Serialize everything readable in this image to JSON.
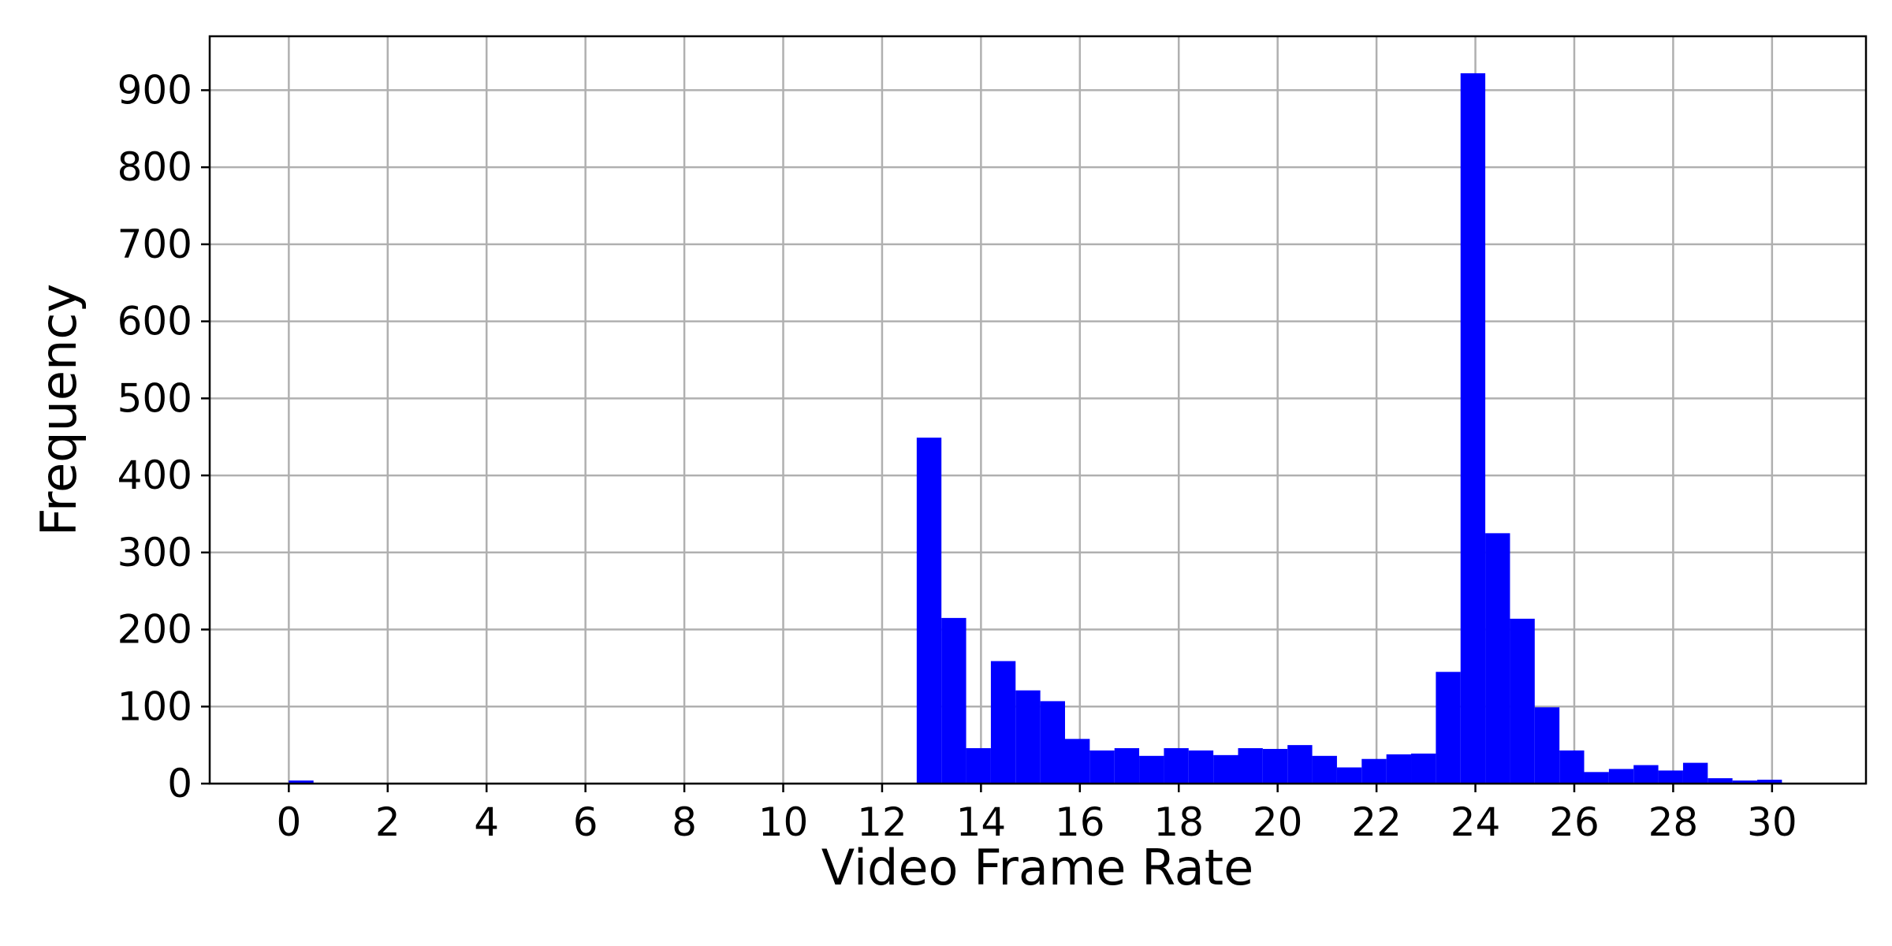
{
  "chart_data": {
    "type": "bar",
    "title": "",
    "xlabel": "Video Frame Rate",
    "ylabel": "Frequency",
    "xlim": [
      -1.6,
      31.9
    ],
    "ylim": [
      0,
      970
    ],
    "xticks": [
      0,
      2,
      4,
      6,
      8,
      10,
      12,
      14,
      16,
      18,
      20,
      22,
      24,
      26,
      28,
      30
    ],
    "yticks": [
      0,
      100,
      200,
      300,
      400,
      500,
      600,
      700,
      800,
      900
    ],
    "grid": true,
    "color": "#0000ff",
    "bin_width": 0.5,
    "bins": [
      {
        "x": 0.0,
        "value": 4
      },
      {
        "x": 12.7,
        "value": 449
      },
      {
        "x": 13.2,
        "value": 215
      },
      {
        "x": 13.7,
        "value": 46
      },
      {
        "x": 14.2,
        "value": 159
      },
      {
        "x": 14.7,
        "value": 121
      },
      {
        "x": 15.2,
        "value": 107
      },
      {
        "x": 15.7,
        "value": 58
      },
      {
        "x": 16.2,
        "value": 43
      },
      {
        "x": 16.7,
        "value": 46
      },
      {
        "x": 17.2,
        "value": 36
      },
      {
        "x": 17.7,
        "value": 46
      },
      {
        "x": 18.2,
        "value": 43
      },
      {
        "x": 18.7,
        "value": 37
      },
      {
        "x": 19.2,
        "value": 46
      },
      {
        "x": 19.7,
        "value": 45
      },
      {
        "x": 20.2,
        "value": 50
      },
      {
        "x": 20.7,
        "value": 36
      },
      {
        "x": 21.2,
        "value": 21
      },
      {
        "x": 21.7,
        "value": 32
      },
      {
        "x": 22.2,
        "value": 38
      },
      {
        "x": 22.7,
        "value": 39
      },
      {
        "x": 23.2,
        "value": 145
      },
      {
        "x": 23.7,
        "value": 922
      },
      {
        "x": 24.2,
        "value": 325
      },
      {
        "x": 24.7,
        "value": 214
      },
      {
        "x": 25.2,
        "value": 99
      },
      {
        "x": 25.7,
        "value": 43
      },
      {
        "x": 26.2,
        "value": 15
      },
      {
        "x": 26.7,
        "value": 19
      },
      {
        "x": 27.2,
        "value": 24
      },
      {
        "x": 27.7,
        "value": 17
      },
      {
        "x": 28.2,
        "value": 27
      },
      {
        "x": 28.7,
        "value": 7
      },
      {
        "x": 29.2,
        "value": 4
      },
      {
        "x": 29.7,
        "value": 5
      }
    ]
  }
}
